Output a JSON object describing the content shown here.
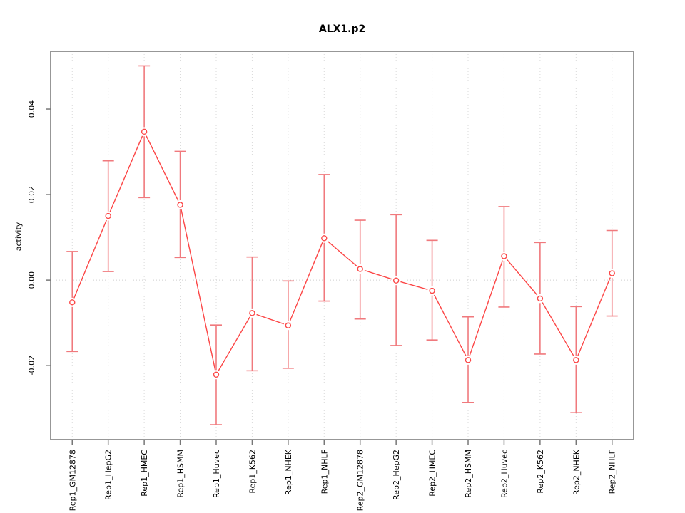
{
  "chart_data": {
    "type": "line",
    "title": "ALX1.p2",
    "ylabel": "activity",
    "xlabel": "",
    "categories": [
      "Rep1_GM12878",
      "Rep1_HepG2",
      "Rep1_HMEC",
      "Rep1_HSMM",
      "Rep1_Huvec",
      "Rep1_K562",
      "Rep1_NHEK",
      "Rep1_NHLF",
      "Rep2_GM12878",
      "Rep2_HepG2",
      "Rep2_HMEC",
      "Rep2_HSMM",
      "Rep2_Huvec",
      "Rep2_K562",
      "Rep2_NHEK",
      "Rep2_NHLF"
    ],
    "series": [
      {
        "name": "activity",
        "values": [
          -0.0052,
          0.015,
          0.0347,
          0.0176,
          -0.0221,
          -0.0077,
          -0.0106,
          0.0098,
          0.0026,
          -0.0001,
          -0.0025,
          -0.0187,
          0.0056,
          -0.0043,
          -0.0187,
          0.0016
        ],
        "lower": [
          -0.0167,
          0.002,
          0.0193,
          0.0053,
          -0.0338,
          -0.0212,
          -0.0206,
          -0.0049,
          -0.0091,
          -0.0153,
          -0.014,
          -0.0286,
          -0.0063,
          -0.0173,
          -0.031,
          -0.0084
        ],
        "upper": [
          0.0067,
          0.0279,
          0.0501,
          0.0301,
          -0.0105,
          0.0054,
          -0.0002,
          0.0247,
          0.014,
          0.0153,
          0.0093,
          -0.0086,
          0.0172,
          0.0088,
          -0.0062,
          0.0116
        ]
      }
    ],
    "ylim": [
      -0.0373,
      0.0535
    ],
    "yticks": [
      -0.02,
      0.0,
      0.02,
      0.04
    ],
    "ytick_labels": [
      "-0.02",
      "0.00",
      "0.02",
      "0.04"
    ],
    "grid": {
      "vertical": "dotted line at every category",
      "horizontal": "dotted line at 0 only"
    },
    "legend": null
  },
  "colors": {
    "point_line": "#fc4646",
    "error_bar": "#f0797d",
    "grid_line": "#d9d9d9",
    "zero_line": "#cfcfcf",
    "box_border": "#979797",
    "tick_mark": "#777777",
    "label_text": "#000000",
    "background": "#ffffff"
  }
}
